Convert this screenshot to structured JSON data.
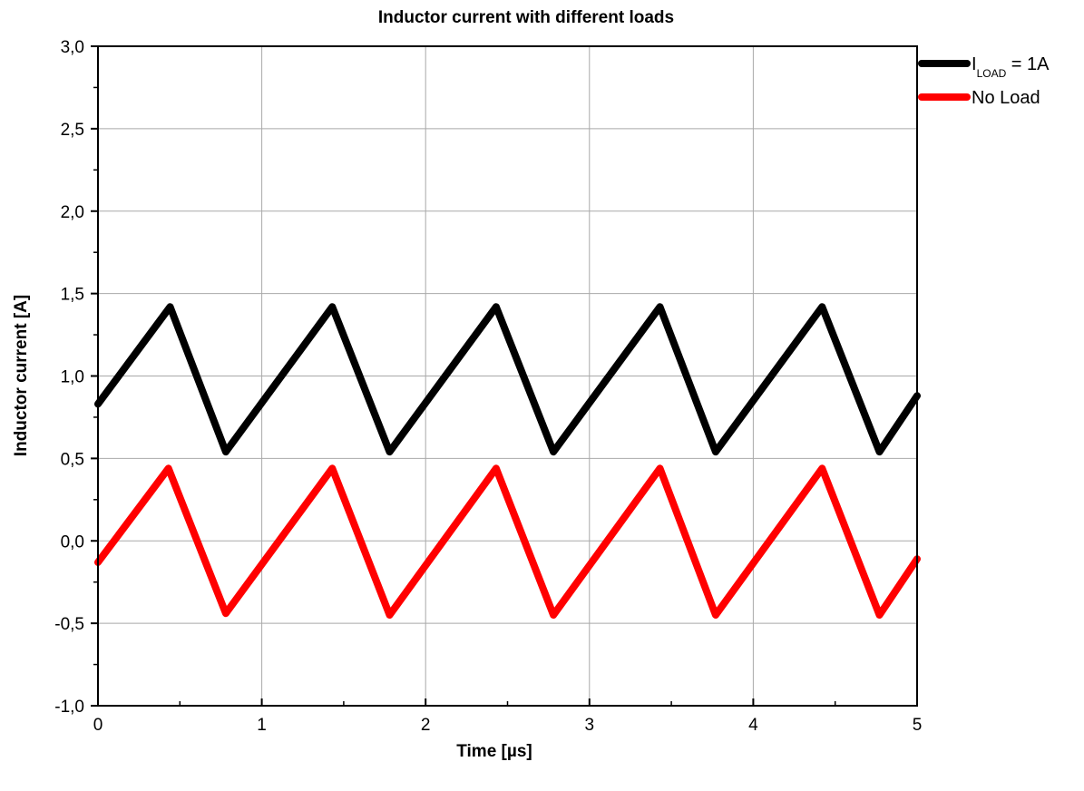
{
  "chart_data": {
    "type": "line",
    "title": "Inductor current with different loads",
    "xlabel": "Time [µs]",
    "ylabel": "Inductor current  [A]",
    "xlim": [
      0,
      5
    ],
    "ylim": [
      -1.0,
      3.0
    ],
    "x_ticks": [
      "0",
      "1",
      "2",
      "3",
      "4",
      "5"
    ],
    "y_ticks": [
      "3,0",
      "2,5",
      "2,0",
      "1,5",
      "1,0",
      "0,5",
      "0,0",
      "-0,5",
      "-1,0"
    ],
    "grid": true,
    "legend_position": "top-right",
    "series": [
      {
        "name_main": "I",
        "name_sub": "LOAD",
        "name_tail": " = 1A",
        "color": "#000000",
        "x": [
          0,
          0.44,
          0.78,
          1.43,
          1.78,
          2.43,
          2.78,
          3.43,
          3.77,
          4.42,
          4.77,
          5.0
        ],
        "y": [
          0.83,
          1.42,
          0.54,
          1.42,
          0.54,
          1.42,
          0.54,
          1.42,
          0.54,
          1.42,
          0.54,
          0.88
        ]
      },
      {
        "name": "No Load",
        "color": "#ff0000",
        "x": [
          0,
          0.43,
          0.78,
          1.43,
          1.78,
          2.43,
          2.78,
          3.43,
          3.77,
          4.42,
          4.77,
          5.0
        ],
        "y": [
          -0.13,
          0.44,
          -0.44,
          0.44,
          -0.45,
          0.44,
          -0.45,
          0.44,
          -0.45,
          0.44,
          -0.45,
          -0.11
        ]
      }
    ]
  }
}
